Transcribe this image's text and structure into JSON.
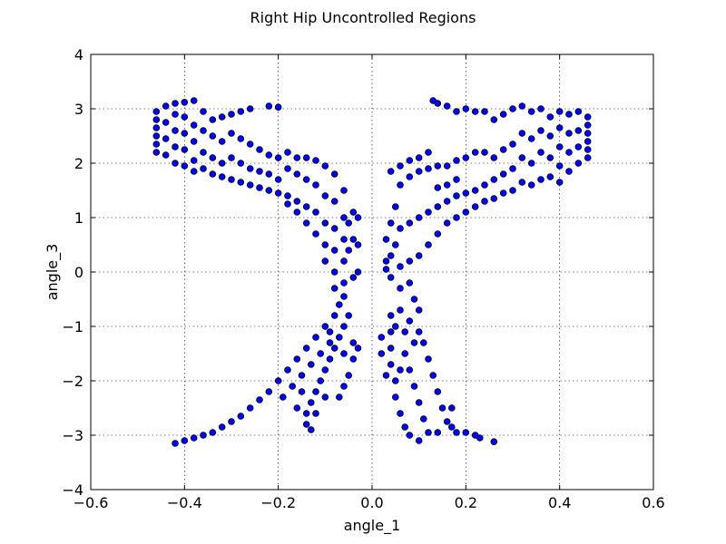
{
  "chart_data": {
    "type": "scatter",
    "title": "Right Hip Uncontrolled Regions",
    "xlabel": "angle_1",
    "ylabel": "angle_3",
    "xlim": [
      -0.6,
      0.6
    ],
    "ylim": [
      -4,
      4
    ],
    "xticks": [
      -0.6,
      -0.4,
      -0.2,
      0.0,
      0.2,
      0.4,
      0.6
    ],
    "xtick_labels": [
      "−0.6",
      "−0.4",
      "−0.2",
      "0.0",
      "0.2",
      "0.4",
      "0.6"
    ],
    "yticks": [
      -4,
      -3,
      -2,
      -1,
      0,
      1,
      2,
      3,
      4
    ],
    "ytick_labels": [
      "−4",
      "−3",
      "−2",
      "−1",
      "0",
      "1",
      "2",
      "3",
      "4"
    ],
    "grid": true,
    "marker_color": "#0000ff",
    "marker_edge_color": "#000000",
    "points": [
      [
        -0.46,
        2.95
      ],
      [
        -0.46,
        2.8
      ],
      [
        -0.46,
        2.65
      ],
      [
        -0.46,
        2.5
      ],
      [
        -0.46,
        2.35
      ],
      [
        -0.46,
        2.2
      ],
      [
        -0.44,
        3.05
      ],
      [
        -0.44,
        2.75
      ],
      [
        -0.44,
        2.45
      ],
      [
        -0.44,
        2.15
      ],
      [
        -0.42,
        3.1
      ],
      [
        -0.42,
        2.9
      ],
      [
        -0.42,
        2.6
      ],
      [
        -0.42,
        2.3
      ],
      [
        -0.42,
        2.0
      ],
      [
        -0.4,
        3.12
      ],
      [
        -0.4,
        2.85
      ],
      [
        -0.4,
        2.55
      ],
      [
        -0.4,
        2.25
      ],
      [
        -0.4,
        1.95
      ],
      [
        -0.38,
        3.15
      ],
      [
        -0.38,
        2.7
      ],
      [
        -0.38,
        2.4
      ],
      [
        -0.38,
        2.05
      ],
      [
        -0.38,
        1.85
      ],
      [
        -0.36,
        2.95
      ],
      [
        -0.36,
        2.6
      ],
      [
        -0.36,
        2.2
      ],
      [
        -0.36,
        1.9
      ],
      [
        -0.34,
        2.8
      ],
      [
        -0.34,
        2.5
      ],
      [
        -0.34,
        2.1
      ],
      [
        -0.34,
        1.8
      ],
      [
        -0.32,
        2.85
      ],
      [
        -0.32,
        2.4
      ],
      [
        -0.32,
        2.0
      ],
      [
        -0.32,
        1.75
      ],
      [
        -0.3,
        2.9
      ],
      [
        -0.3,
        2.55
      ],
      [
        -0.3,
        2.1
      ],
      [
        -0.3,
        1.7
      ],
      [
        -0.28,
        2.95
      ],
      [
        -0.28,
        2.45
      ],
      [
        -0.28,
        2.0
      ],
      [
        -0.28,
        1.65
      ],
      [
        -0.26,
        3.0
      ],
      [
        -0.26,
        2.35
      ],
      [
        -0.26,
        1.9
      ],
      [
        -0.26,
        1.6
      ],
      [
        -0.24,
        2.25
      ],
      [
        -0.24,
        1.85
      ],
      [
        -0.24,
        1.55
      ],
      [
        -0.22,
        3.05
      ],
      [
        -0.22,
        2.15
      ],
      [
        -0.22,
        1.8
      ],
      [
        -0.22,
        1.5
      ],
      [
        -0.2,
        3.03
      ],
      [
        -0.2,
        2.1
      ],
      [
        -0.2,
        1.7
      ],
      [
        -0.2,
        1.45
      ],
      [
        -0.18,
        2.2
      ],
      [
        -0.18,
        1.9
      ],
      [
        -0.18,
        1.4
      ],
      [
        -0.18,
        1.25
      ],
      [
        -0.16,
        2.1
      ],
      [
        -0.16,
        1.8
      ],
      [
        -0.16,
        1.3
      ],
      [
        -0.16,
        1.1
      ],
      [
        -0.14,
        2.1
      ],
      [
        -0.14,
        1.7
      ],
      [
        -0.14,
        1.2
      ],
      [
        -0.14,
        0.9
      ],
      [
        -0.12,
        2.05
      ],
      [
        -0.12,
        1.6
      ],
      [
        -0.12,
        1.1
      ],
      [
        -0.12,
        0.7
      ],
      [
        -0.1,
        1.95
      ],
      [
        -0.1,
        1.4
      ],
      [
        -0.1,
        0.9
      ],
      [
        -0.1,
        0.5
      ],
      [
        -0.1,
        0.2
      ],
      [
        -0.08,
        1.8
      ],
      [
        -0.08,
        1.3
      ],
      [
        -0.08,
        0.8
      ],
      [
        -0.08,
        0.4
      ],
      [
        -0.08,
        0.0
      ],
      [
        -0.08,
        -0.3
      ],
      [
        -0.07,
        -0.6
      ],
      [
        -0.06,
        1.5
      ],
      [
        -0.06,
        1.0
      ],
      [
        -0.06,
        0.6
      ],
      [
        -0.06,
        0.2
      ],
      [
        -0.06,
        -0.2
      ],
      [
        -0.06,
        -0.45
      ],
      [
        -0.05,
        0.9
      ],
      [
        -0.05,
        0.4
      ],
      [
        -0.04,
        1.1
      ],
      [
        -0.04,
        0.6
      ],
      [
        -0.04,
        -0.1
      ],
      [
        -0.03,
        1.0
      ],
      [
        -0.03,
        0.5
      ],
      [
        -0.03,
        0.0
      ],
      [
        -0.05,
        -0.8
      ],
      [
        -0.06,
        -1.0
      ],
      [
        -0.07,
        -1.2
      ],
      [
        -0.08,
        -1.4
      ],
      [
        -0.09,
        -1.6
      ],
      [
        -0.1,
        -1.8
      ],
      [
        -0.11,
        -2.0
      ],
      [
        -0.12,
        -2.2
      ],
      [
        -0.13,
        -2.4
      ],
      [
        -0.14,
        -2.6
      ],
      [
        -0.14,
        -2.8
      ],
      [
        -0.13,
        -2.9
      ],
      [
        -0.08,
        -0.8
      ],
      [
        -0.1,
        -1.0
      ],
      [
        -0.12,
        -1.2
      ],
      [
        -0.14,
        -1.4
      ],
      [
        -0.16,
        -1.6
      ],
      [
        -0.18,
        -1.8
      ],
      [
        -0.2,
        -2.0
      ],
      [
        -0.22,
        -2.2
      ],
      [
        -0.24,
        -2.35
      ],
      [
        -0.26,
        -2.5
      ],
      [
        -0.28,
        -2.65
      ],
      [
        -0.3,
        -2.75
      ],
      [
        -0.32,
        -2.85
      ],
      [
        -0.34,
        -2.95
      ],
      [
        -0.36,
        -3.0
      ],
      [
        -0.38,
        -3.05
      ],
      [
        -0.4,
        -3.1
      ],
      [
        -0.42,
        -3.15
      ],
      [
        -0.04,
        -1.3
      ],
      [
        -0.04,
        -1.6
      ],
      [
        -0.05,
        -1.9
      ],
      [
        -0.06,
        -2.1
      ],
      [
        -0.07,
        -2.3
      ],
      [
        -0.09,
        -1.3
      ],
      [
        -0.11,
        -1.5
      ],
      [
        -0.13,
        -1.7
      ],
      [
        -0.15,
        -1.9
      ],
      [
        -0.17,
        -2.1
      ],
      [
        -0.19,
        -2.3
      ],
      [
        -0.15,
        -2.2
      ],
      [
        -0.16,
        -2.5
      ],
      [
        -0.1,
        -2.3
      ],
      [
        -0.12,
        -2.6
      ],
      [
        -0.06,
        -1.5
      ],
      [
        -0.03,
        -1.4
      ],
      [
        -0.09,
        -1.1
      ],
      [
        0.46,
        2.85
      ],
      [
        0.46,
        2.7
      ],
      [
        0.46,
        2.55
      ],
      [
        0.46,
        2.4
      ],
      [
        0.46,
        2.25
      ],
      [
        0.46,
        2.1
      ],
      [
        0.44,
        2.95
      ],
      [
        0.44,
        2.6
      ],
      [
        0.44,
        2.3
      ],
      [
        0.44,
        2.0
      ],
      [
        0.42,
        2.9
      ],
      [
        0.42,
        2.55
      ],
      [
        0.42,
        2.2
      ],
      [
        0.42,
        1.85
      ],
      [
        0.4,
        2.95
      ],
      [
        0.4,
        2.65
      ],
      [
        0.4,
        2.3
      ],
      [
        0.4,
        1.95
      ],
      [
        0.4,
        1.65
      ],
      [
        0.38,
        2.85
      ],
      [
        0.38,
        2.5
      ],
      [
        0.38,
        2.1
      ],
      [
        0.38,
        1.75
      ],
      [
        0.36,
        3.0
      ],
      [
        0.36,
        2.6
      ],
      [
        0.36,
        2.2
      ],
      [
        0.36,
        1.7
      ],
      [
        0.34,
        2.95
      ],
      [
        0.34,
        2.45
      ],
      [
        0.34,
        2.0
      ],
      [
        0.34,
        1.6
      ],
      [
        0.32,
        3.05
      ],
      [
        0.32,
        2.55
      ],
      [
        0.32,
        2.1
      ],
      [
        0.32,
        1.65
      ],
      [
        0.3,
        3.0
      ],
      [
        0.3,
        2.35
      ],
      [
        0.3,
        1.9
      ],
      [
        0.3,
        1.5
      ],
      [
        0.28,
        2.9
      ],
      [
        0.28,
        2.25
      ],
      [
        0.28,
        1.8
      ],
      [
        0.28,
        1.45
      ],
      [
        0.26,
        2.8
      ],
      [
        0.26,
        2.1
      ],
      [
        0.26,
        1.7
      ],
      [
        0.26,
        1.35
      ],
      [
        0.24,
        2.95
      ],
      [
        0.24,
        2.2
      ],
      [
        0.24,
        1.6
      ],
      [
        0.24,
        1.3
      ],
      [
        0.22,
        2.95
      ],
      [
        0.22,
        2.2
      ],
      [
        0.22,
        1.5
      ],
      [
        0.22,
        1.2
      ],
      [
        0.2,
        3.0
      ],
      [
        0.2,
        2.1
      ],
      [
        0.2,
        1.45
      ],
      [
        0.2,
        1.1
      ],
      [
        0.18,
        2.95
      ],
      [
        0.18,
        2.05
      ],
      [
        0.18,
        1.4
      ],
      [
        0.18,
        1.0
      ],
      [
        0.16,
        3.05
      ],
      [
        0.16,
        1.95
      ],
      [
        0.16,
        1.3
      ],
      [
        0.16,
        0.9
      ],
      [
        0.14,
        3.1
      ],
      [
        0.14,
        1.95
      ],
      [
        0.14,
        1.2
      ],
      [
        0.14,
        0.7
      ],
      [
        0.13,
        3.15
      ],
      [
        0.12,
        1.9
      ],
      [
        0.12,
        1.1
      ],
      [
        0.12,
        0.5
      ],
      [
        0.1,
        1.85
      ],
      [
        0.1,
        1.0
      ],
      [
        0.1,
        0.3
      ],
      [
        0.08,
        1.75
      ],
      [
        0.08,
        0.9
      ],
      [
        0.08,
        0.2
      ],
      [
        0.08,
        -0.2
      ],
      [
        0.06,
        1.6
      ],
      [
        0.06,
        0.8
      ],
      [
        0.06,
        0.1
      ],
      [
        0.06,
        -0.3
      ],
      [
        0.05,
        1.2
      ],
      [
        0.05,
        0.5
      ],
      [
        0.04,
        0.9
      ],
      [
        0.04,
        0.3
      ],
      [
        0.04,
        -0.1
      ],
      [
        0.03,
        0.6
      ],
      [
        0.03,
        0.2
      ],
      [
        0.03,
        0.05
      ],
      [
        0.12,
        2.2
      ],
      [
        0.1,
        2.1
      ],
      [
        0.08,
        2.05
      ],
      [
        0.06,
        1.95
      ],
      [
        0.04,
        1.85
      ],
      [
        0.18,
        1.7
      ],
      [
        0.16,
        1.6
      ],
      [
        0.14,
        1.55
      ],
      [
        0.06,
        -0.7
      ],
      [
        0.08,
        -0.9
      ],
      [
        0.1,
        -1.1
      ],
      [
        0.11,
        -1.3
      ],
      [
        0.12,
        -1.6
      ],
      [
        0.13,
        -1.9
      ],
      [
        0.14,
        -2.2
      ],
      [
        0.15,
        -2.5
      ],
      [
        0.16,
        -2.75
      ],
      [
        0.18,
        -2.95
      ],
      [
        0.2,
        -2.95
      ],
      [
        0.17,
        -2.5
      ],
      [
        0.04,
        -0.8
      ],
      [
        0.04,
        -1.1
      ],
      [
        0.04,
        -1.4
      ],
      [
        0.04,
        -1.7
      ],
      [
        0.05,
        -2.0
      ],
      [
        0.05,
        -2.3
      ],
      [
        0.06,
        -2.6
      ],
      [
        0.07,
        -2.85
      ],
      [
        0.08,
        -3.0
      ],
      [
        0.1,
        -3.1
      ],
      [
        0.12,
        -2.95
      ],
      [
        0.14,
        -2.95
      ],
      [
        0.02,
        -1.2
      ],
      [
        0.02,
        -1.5
      ],
      [
        0.03,
        -1.9
      ],
      [
        0.07,
        -1.5
      ],
      [
        0.08,
        -1.8
      ],
      [
        0.09,
        -2.1
      ],
      [
        0.1,
        -2.4
      ],
      [
        0.11,
        -2.7
      ],
      [
        0.09,
        -1.3
      ],
      [
        0.07,
        -1.1
      ],
      [
        0.05,
        -1.0
      ],
      [
        0.06,
        -1.8
      ],
      [
        0.17,
        -2.85
      ],
      [
        0.22,
        -3.0
      ],
      [
        0.23,
        -3.05
      ],
      [
        0.26,
        -3.12
      ],
      [
        0.09,
        -0.5
      ],
      [
        0.1,
        -0.7
      ]
    ]
  }
}
